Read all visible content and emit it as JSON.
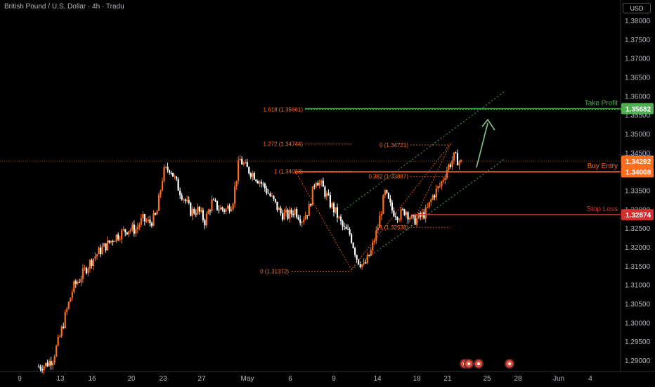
{
  "symbol_title": "British Pound / U.S. Dollar · 4h · Tradu",
  "currency": "USD",
  "chart_data": {
    "type": "candlestick",
    "y_ticks": [
      1.29,
      1.295,
      1.3,
      1.305,
      1.31,
      1.315,
      1.32,
      1.325,
      1.33,
      1.335,
      1.34,
      1.345,
      1.35,
      1.355,
      1.36,
      1.365,
      1.37,
      1.375,
      1.38
    ],
    "y_tick_labels": [
      "1.29000",
      "1.29500",
      "1.30000",
      "1.30500",
      "1.31000",
      "1.31500",
      "1.32000",
      "1.32500",
      "1.33000",
      "1.33500",
      "1.34000",
      "1.34500",
      "1.35000",
      "1.35500",
      "1.36000",
      "1.36500",
      "1.37000",
      "1.37500",
      "1.38000"
    ],
    "ylim": [
      1.2885,
      1.3815
    ],
    "x_ticks": [
      "9",
      "13",
      "16",
      "20",
      "23",
      "27",
      "May",
      "6",
      "9",
      "14",
      "18",
      "21",
      "25",
      "28",
      "Jun",
      "4"
    ],
    "levels": [
      {
        "name": "Take Profit",
        "value": 1.35682,
        "label": "1.35682",
        "color": "#4caf50"
      },
      {
        "name": "Buy Entry",
        "value": 1.34008,
        "label": "1.34008",
        "color": "#ff6d1f"
      },
      {
        "name": "Stop Loss",
        "value": 1.32874,
        "label": "1.32874",
        "color": "#d32f2f"
      }
    ],
    "last_price": {
      "value": 1.34292,
      "label": "1.34292",
      "color": "#ff6d1f"
    },
    "fib_levels": [
      {
        "label": "1.618 (1.35661)",
        "value": 1.35661
      },
      {
        "label": "1.272 (1.34744)",
        "value": 1.34744
      },
      {
        "label": "1 (1.34023)",
        "value": 1.34023
      },
      {
        "label": "0 (1.31372)",
        "value": 1.31372
      },
      {
        "label": "0 (1.34721)",
        "value": 1.34721
      },
      {
        "label": "0.382 (1.33887)",
        "value": 1.33887
      },
      {
        "label": "1 (1.32538)",
        "value": 1.32538
      }
    ],
    "anchors": [
      [
        1.2885,
        1.289,
        1.2905,
        1.296,
        1.303,
        1.3095,
        1.312,
        1.315,
        1.3175,
        1.3195,
        1.321,
        1.3228,
        1.324,
        1.325,
        1.3248,
        1.3275,
        1.3265,
        1.3285,
        1.34,
        1.3412,
        1.3365,
        1.333,
        1.3295,
        1.33,
        1.327,
        1.332,
        1.3305,
        1.33,
        1.332,
        1.3435,
        1.341,
        1.3395,
        1.3375,
        1.335,
        1.332,
        1.329,
        1.3285,
        1.33,
        1.3275,
        1.33,
        1.3385,
        1.336,
        1.332,
        1.329,
        1.325,
        1.3235,
        1.317,
        1.315,
        1.319,
        1.3255,
        1.3345,
        1.33,
        1.3285,
        1.33,
        1.327,
        1.328,
        1.3295,
        1.334,
        1.3365,
        1.341,
        1.344,
        1.3425
      ]
    ]
  }
}
